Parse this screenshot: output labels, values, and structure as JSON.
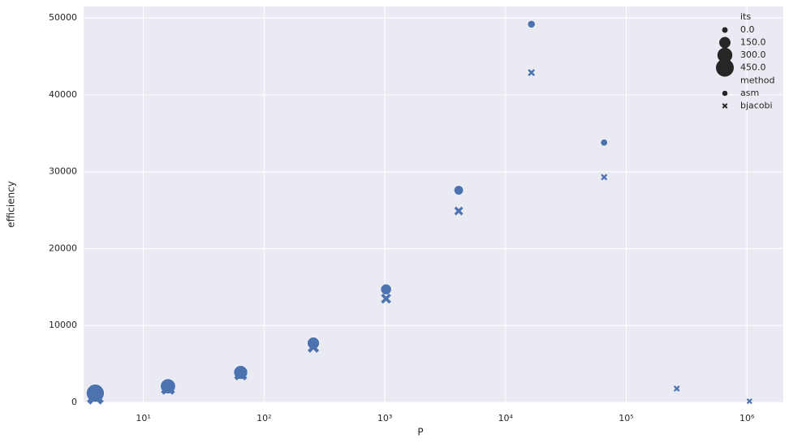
{
  "chart_data": {
    "type": "scatter",
    "xlabel": "P",
    "ylabel": "efficiency",
    "xscale": "log",
    "xlim": [
      3.2,
      2000000
    ],
    "ylim": [
      0,
      51500
    ],
    "xticks": [
      {
        "value": 10,
        "label": "10¹"
      },
      {
        "value": 100,
        "label": "10²"
      },
      {
        "value": 1000,
        "label": "10³"
      },
      {
        "value": 10000,
        "label": "10⁴"
      },
      {
        "value": 100000,
        "label": "10⁵"
      },
      {
        "value": 1000000,
        "label": "10⁶"
      }
    ],
    "yticks": [
      0,
      10000,
      20000,
      30000,
      40000,
      50000
    ],
    "grid": true,
    "legend": "upper right",
    "size_legend": {
      "title": "its",
      "entries": [
        {
          "value": 0,
          "label": "0.0"
        },
        {
          "value": 150,
          "label": "150.0"
        },
        {
          "value": 300,
          "label": "300.0"
        },
        {
          "value": 450,
          "label": "450.0"
        }
      ]
    },
    "marker_legend_title": "method",
    "series": [
      {
        "name": "asm",
        "color": "#4c72b0",
        "marker": "o",
        "x": [
          4,
          16,
          64,
          256,
          1024,
          4096,
          16384,
          65536
        ],
        "values": [
          1200,
          2100,
          3900,
          7700,
          14700,
          27600,
          49200,
          33800
        ],
        "sizes": [
          450,
          300,
          250,
          180,
          130,
          90,
          40,
          25
        ]
      },
      {
        "name": "bjacobi",
        "color": "#4c72b0",
        "marker": "x",
        "x": [
          4,
          16,
          64,
          256,
          1024,
          4096,
          16384,
          65536,
          262144,
          1048576
        ],
        "values": [
          800,
          1900,
          3700,
          7200,
          13500,
          24900,
          42900,
          29300,
          1800,
          150
        ],
        "sizes": [
          450,
          300,
          250,
          180,
          130,
          90,
          40,
          25,
          20,
          10
        ]
      }
    ]
  }
}
